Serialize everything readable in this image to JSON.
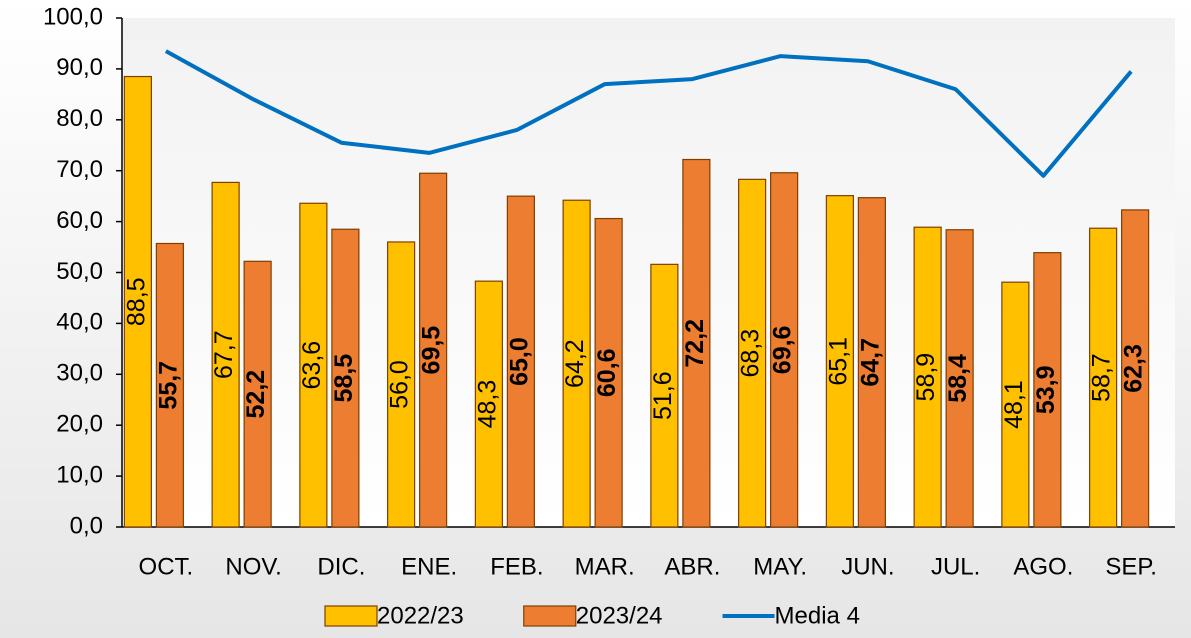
{
  "chart_data": {
    "type": "bar",
    "categories": [
      "OCT.",
      "NOV.",
      "DIC.",
      "ENE.",
      "FEB.",
      "MAR.",
      "ABR.",
      "MAY.",
      "JUN.",
      "JUL.",
      "AGO.",
      "SEP."
    ],
    "series": [
      {
        "name": "2022/23",
        "type": "bar",
        "color": "#ffc000",
        "values": [
          88.5,
          67.7,
          63.6,
          56.0,
          48.3,
          64.2,
          51.6,
          68.3,
          65.1,
          58.9,
          48.1,
          58.7
        ],
        "value_labels": [
          "88,5",
          "67,7",
          "63,6",
          "56,0",
          "48,3",
          "64,2",
          "51,6",
          "68,3",
          "65,1",
          "58,9",
          "48,1",
          "58,7"
        ]
      },
      {
        "name": "2023/24",
        "type": "bar",
        "color": "#ed7d31",
        "values": [
          55.7,
          52.2,
          58.5,
          69.5,
          65.0,
          60.6,
          72.2,
          69.6,
          64.7,
          58.4,
          53.9,
          62.3
        ],
        "value_labels": [
          "55,7",
          "52,2",
          "58,5",
          "69,5",
          "65,0",
          "60,6",
          "72,2",
          "69,6",
          "64,7",
          "58,4",
          "53,9",
          "62,3"
        ]
      },
      {
        "name": "Media 4",
        "type": "line",
        "color": "#0070c0",
        "values": [
          93.5,
          84,
          75.5,
          73.5,
          78,
          87,
          88,
          92.5,
          91.5,
          86,
          69,
          89.5
        ]
      }
    ],
    "ylim": [
      0,
      100
    ],
    "yticks": [
      {
        "value": 0,
        "label": "0,0"
      },
      {
        "value": 10,
        "label": "10,0"
      },
      {
        "value": 20,
        "label": "20,0"
      },
      {
        "value": 30,
        "label": "30,0"
      },
      {
        "value": 40,
        "label": "40,0"
      },
      {
        "value": 50,
        "label": "50,0"
      },
      {
        "value": 60,
        "label": "60,0"
      },
      {
        "value": 70,
        "label": "70,0"
      },
      {
        "value": 80,
        "label": "80,0"
      },
      {
        "value": 90,
        "label": "90,0"
      },
      {
        "value": 100,
        "label": "100,0"
      }
    ],
    "legend": "bottom"
  }
}
